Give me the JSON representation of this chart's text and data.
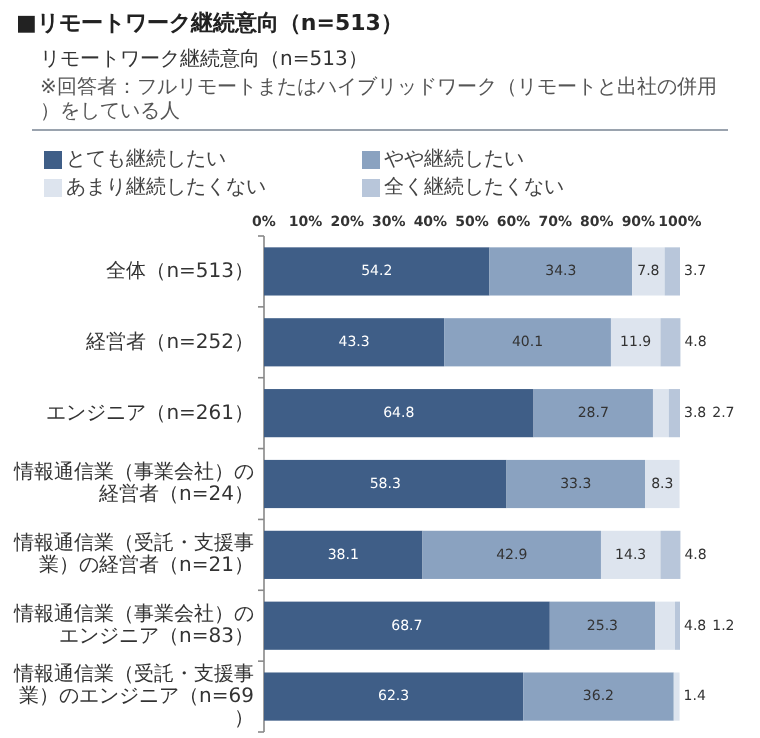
{
  "chart_data": {
    "type": "bar",
    "orientation": "horizontal",
    "stacked": true,
    "title": "■リモートワーク継続意向（n=513）",
    "subtitle": "リモートワーク継続意向（n=513）",
    "annotations": [
      "※回答者：フルリモートまたはハイブリッドワーク（リモートと出社の併用）をしている人"
    ],
    "categories": [
      "全体（n=513）",
      "経営者（n=252）",
      "エンジニア（n=261）",
      "情報通信業（事業会社）の経営者（n=24）",
      "情報通信業（受託・支援事業）の経営者（n=21）",
      "情報通信業（事業会社）のエンジニア（n=83）",
      "情報通信業（受託・支援事業）のエンジニア（n=69）"
    ],
    "xlim": [
      0,
      100
    ],
    "xticks": [
      {
        "value": 0,
        "label": "0%"
      },
      {
        "value": 10,
        "label": "10%"
      },
      {
        "value": 20,
        "label": "20%"
      },
      {
        "value": 30,
        "label": "30%"
      },
      {
        "value": 40,
        "label": "40%"
      },
      {
        "value": 50,
        "label": "50%"
      },
      {
        "value": 60,
        "label": "60%"
      },
      {
        "value": 70,
        "label": "70%"
      },
      {
        "value": 80,
        "label": "80%"
      },
      {
        "value": 90,
        "label": "90%"
      },
      {
        "value": 100,
        "label": "100%"
      }
    ],
    "legend": "top",
    "series": [
      {
        "name": "とても継続したい",
        "color": "#3f5e87",
        "values": [
          54.2,
          43.3,
          64.8,
          58.3,
          38.1,
          68.7,
          62.3
        ],
        "value_labels": [
          "54.2",
          "43.3",
          "64.8",
          "58.3",
          "38.1",
          "68.7",
          "62.3"
        ]
      },
      {
        "name": "やや継続したい",
        "color": "#8aa2c0",
        "values": [
          34.3,
          40.1,
          28.7,
          33.3,
          42.9,
          25.3,
          36.2
        ],
        "value_labels": [
          "34.3",
          "40.1",
          "28.7",
          "33.3",
          "42.9",
          "25.3",
          "36.2"
        ]
      },
      {
        "name": "あまり継続したくない",
        "color": "#dde4ee",
        "values": [
          7.8,
          11.9,
          3.8,
          8.3,
          14.3,
          4.8,
          1.4
        ],
        "value_labels": [
          "7.8",
          "11.9",
          "3.8",
          "8.3",
          "14.3",
          "4.8",
          "1.4"
        ]
      },
      {
        "name": "全く継続したくない",
        "color": "#b8c6da",
        "values": [
          3.7,
          4.8,
          2.7,
          0,
          4.8,
          1.2,
          0
        ],
        "value_labels": [
          "3.7",
          "4.8",
          "2.7",
          null,
          "4.8",
          "1.2",
          null
        ]
      }
    ]
  }
}
